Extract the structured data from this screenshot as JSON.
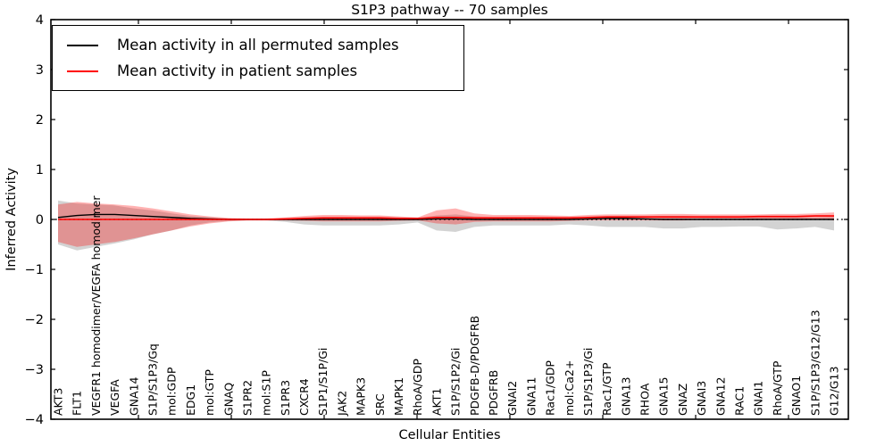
{
  "figure": {
    "title": "S1P3 pathway -- 70 samples",
    "xlabel": "Cellular Entities",
    "ylabel": "Inferred Activity"
  },
  "legend": {
    "items": [
      {
        "label": "Mean activity in all permuted samples",
        "color": "#000000"
      },
      {
        "label": "Mean activity in patient samples",
        "color": "#ff0000"
      }
    ]
  },
  "chart_data": {
    "type": "line",
    "title": "S1P3 pathway -- 70 samples",
    "xlabel": "Cellular Entities",
    "ylabel": "Inferred Activity",
    "ylim": [
      -4,
      4
    ],
    "yticks": [
      -4,
      -3,
      -2,
      -1,
      0,
      1,
      2,
      3,
      4
    ],
    "grid": false,
    "legend_position": "upper left",
    "reference_line": {
      "y": 0,
      "style": "dotted",
      "color": "#000000"
    },
    "categories": [
      "AKT3",
      "FLT1",
      "VEGFR1 homodimer/VEGFA homodimer",
      "VEGFA",
      "GNA14",
      "S1P/S1P3/Gq",
      "mol:GDP",
      "EDG1",
      "mol:GTP",
      "GNAQ",
      "S1PR2",
      "mol:S1P",
      "S1PR3",
      "CXCR4",
      "S1P1/S1P/Gi",
      "JAK2",
      "MAPK3",
      "SRC",
      "MAPK1",
      "RhoA/GDP",
      "AKT1",
      "S1P/S1P2/Gi",
      "PDGFB-D/PDGFRB",
      "PDGFRB",
      "GNAI2",
      "GNA11",
      "Rac1/GDP",
      "mol:Ca2+",
      "S1P/S1P3/Gi",
      "Rac1/GTP",
      "GNA13",
      "RHOA",
      "GNA15",
      "GNAZ",
      "GNAI3",
      "GNA12",
      "RAC1",
      "GNAI1",
      "RhoA/GTP",
      "GNAO1",
      "S1P/S1P3/G12/G13",
      "G12/G13"
    ],
    "series": [
      {
        "name": "Mean activity in all permuted samples",
        "color": "#000000",
        "style": "solid",
        "values": [
          0.04,
          0.08,
          0.1,
          0.1,
          0.08,
          0.06,
          0.04,
          0.02,
          0.01,
          0,
          0,
          0,
          0,
          0,
          0,
          0,
          0,
          0,
          0,
          0,
          0.01,
          0.01,
          0,
          0,
          0,
          0,
          0,
          0,
          0.01,
          0.02,
          0.02,
          0.01,
          0,
          0,
          0,
          0,
          0,
          0,
          0,
          0,
          0,
          0
        ]
      },
      {
        "name": "Mean activity in patient samples",
        "color": "#ff0000",
        "style": "solid",
        "values": [
          0,
          0,
          0,
          0,
          0,
          0,
          0,
          0,
          0,
          0,
          0,
          0,
          0.01,
          0.02,
          0.03,
          0.03,
          0.03,
          0.03,
          0.02,
          0.02,
          0.04,
          0.04,
          0.03,
          0.03,
          0.03,
          0.03,
          0.03,
          0.03,
          0.04,
          0.05,
          0.05,
          0.05,
          0.05,
          0.05,
          0.05,
          0.05,
          0.05,
          0.06,
          0.06,
          0.06,
          0.07,
          0.07
        ]
      }
    ],
    "bands": [
      {
        "name": "permuted-samples-std-band",
        "color": "#808080",
        "opacity": 0.35,
        "upper": [
          0.38,
          0.32,
          0.3,
          0.28,
          0.22,
          0.18,
          0.12,
          0.07,
          0.04,
          0.02,
          0.01,
          0.01,
          0.02,
          0.04,
          0.05,
          0.05,
          0.05,
          0.05,
          0.04,
          0.02,
          0.08,
          0.1,
          0.06,
          0.05,
          0.05,
          0.05,
          0.05,
          0.04,
          0.05,
          0.06,
          0.06,
          0.06,
          0.07,
          0.07,
          0.06,
          0.06,
          0.05,
          0.05,
          0.06,
          0.05,
          0.04,
          0.05
        ],
        "lower": [
          -0.5,
          -0.62,
          -0.55,
          -0.48,
          -0.4,
          -0.3,
          -0.22,
          -0.12,
          -0.06,
          -0.03,
          -0.02,
          -0.02,
          -0.05,
          -0.1,
          -0.12,
          -0.12,
          -0.12,
          -0.12,
          -0.1,
          -0.06,
          -0.22,
          -0.25,
          -0.15,
          -0.12,
          -0.12,
          -0.12,
          -0.12,
          -0.1,
          -0.12,
          -0.15,
          -0.15,
          -0.15,
          -0.18,
          -0.18,
          -0.15,
          -0.15,
          -0.14,
          -0.14,
          -0.2,
          -0.18,
          -0.15,
          -0.22
        ]
      },
      {
        "name": "patient-samples-std-band",
        "color": "#ff0000",
        "opacity": 0.3,
        "upper": [
          0.3,
          0.35,
          0.32,
          0.3,
          0.27,
          0.22,
          0.16,
          0.1,
          0.06,
          0.03,
          0.02,
          0.02,
          0.04,
          0.07,
          0.09,
          0.09,
          0.08,
          0.08,
          0.06,
          0.04,
          0.18,
          0.22,
          0.12,
          0.09,
          0.09,
          0.09,
          0.08,
          0.07,
          0.09,
          0.1,
          0.1,
          0.1,
          0.11,
          0.11,
          0.1,
          0.1,
          0.1,
          0.1,
          0.11,
          0.11,
          0.12,
          0.14
        ],
        "lower": [
          -0.45,
          -0.55,
          -0.5,
          -0.45,
          -0.38,
          -0.3,
          -0.22,
          -0.14,
          -0.08,
          -0.04,
          -0.02,
          -0.02,
          -0.02,
          -0.03,
          -0.04,
          -0.04,
          -0.04,
          -0.04,
          -0.03,
          -0.02,
          -0.08,
          -0.1,
          -0.05,
          -0.04,
          -0.04,
          -0.04,
          -0.04,
          -0.03,
          -0.02,
          -0.02,
          -0.02,
          -0.02,
          -0.02,
          -0.02,
          -0.01,
          -0.01,
          -0.01,
          -0.01,
          0.0,
          0.0,
          0.01,
          -0.02
        ]
      }
    ]
  }
}
